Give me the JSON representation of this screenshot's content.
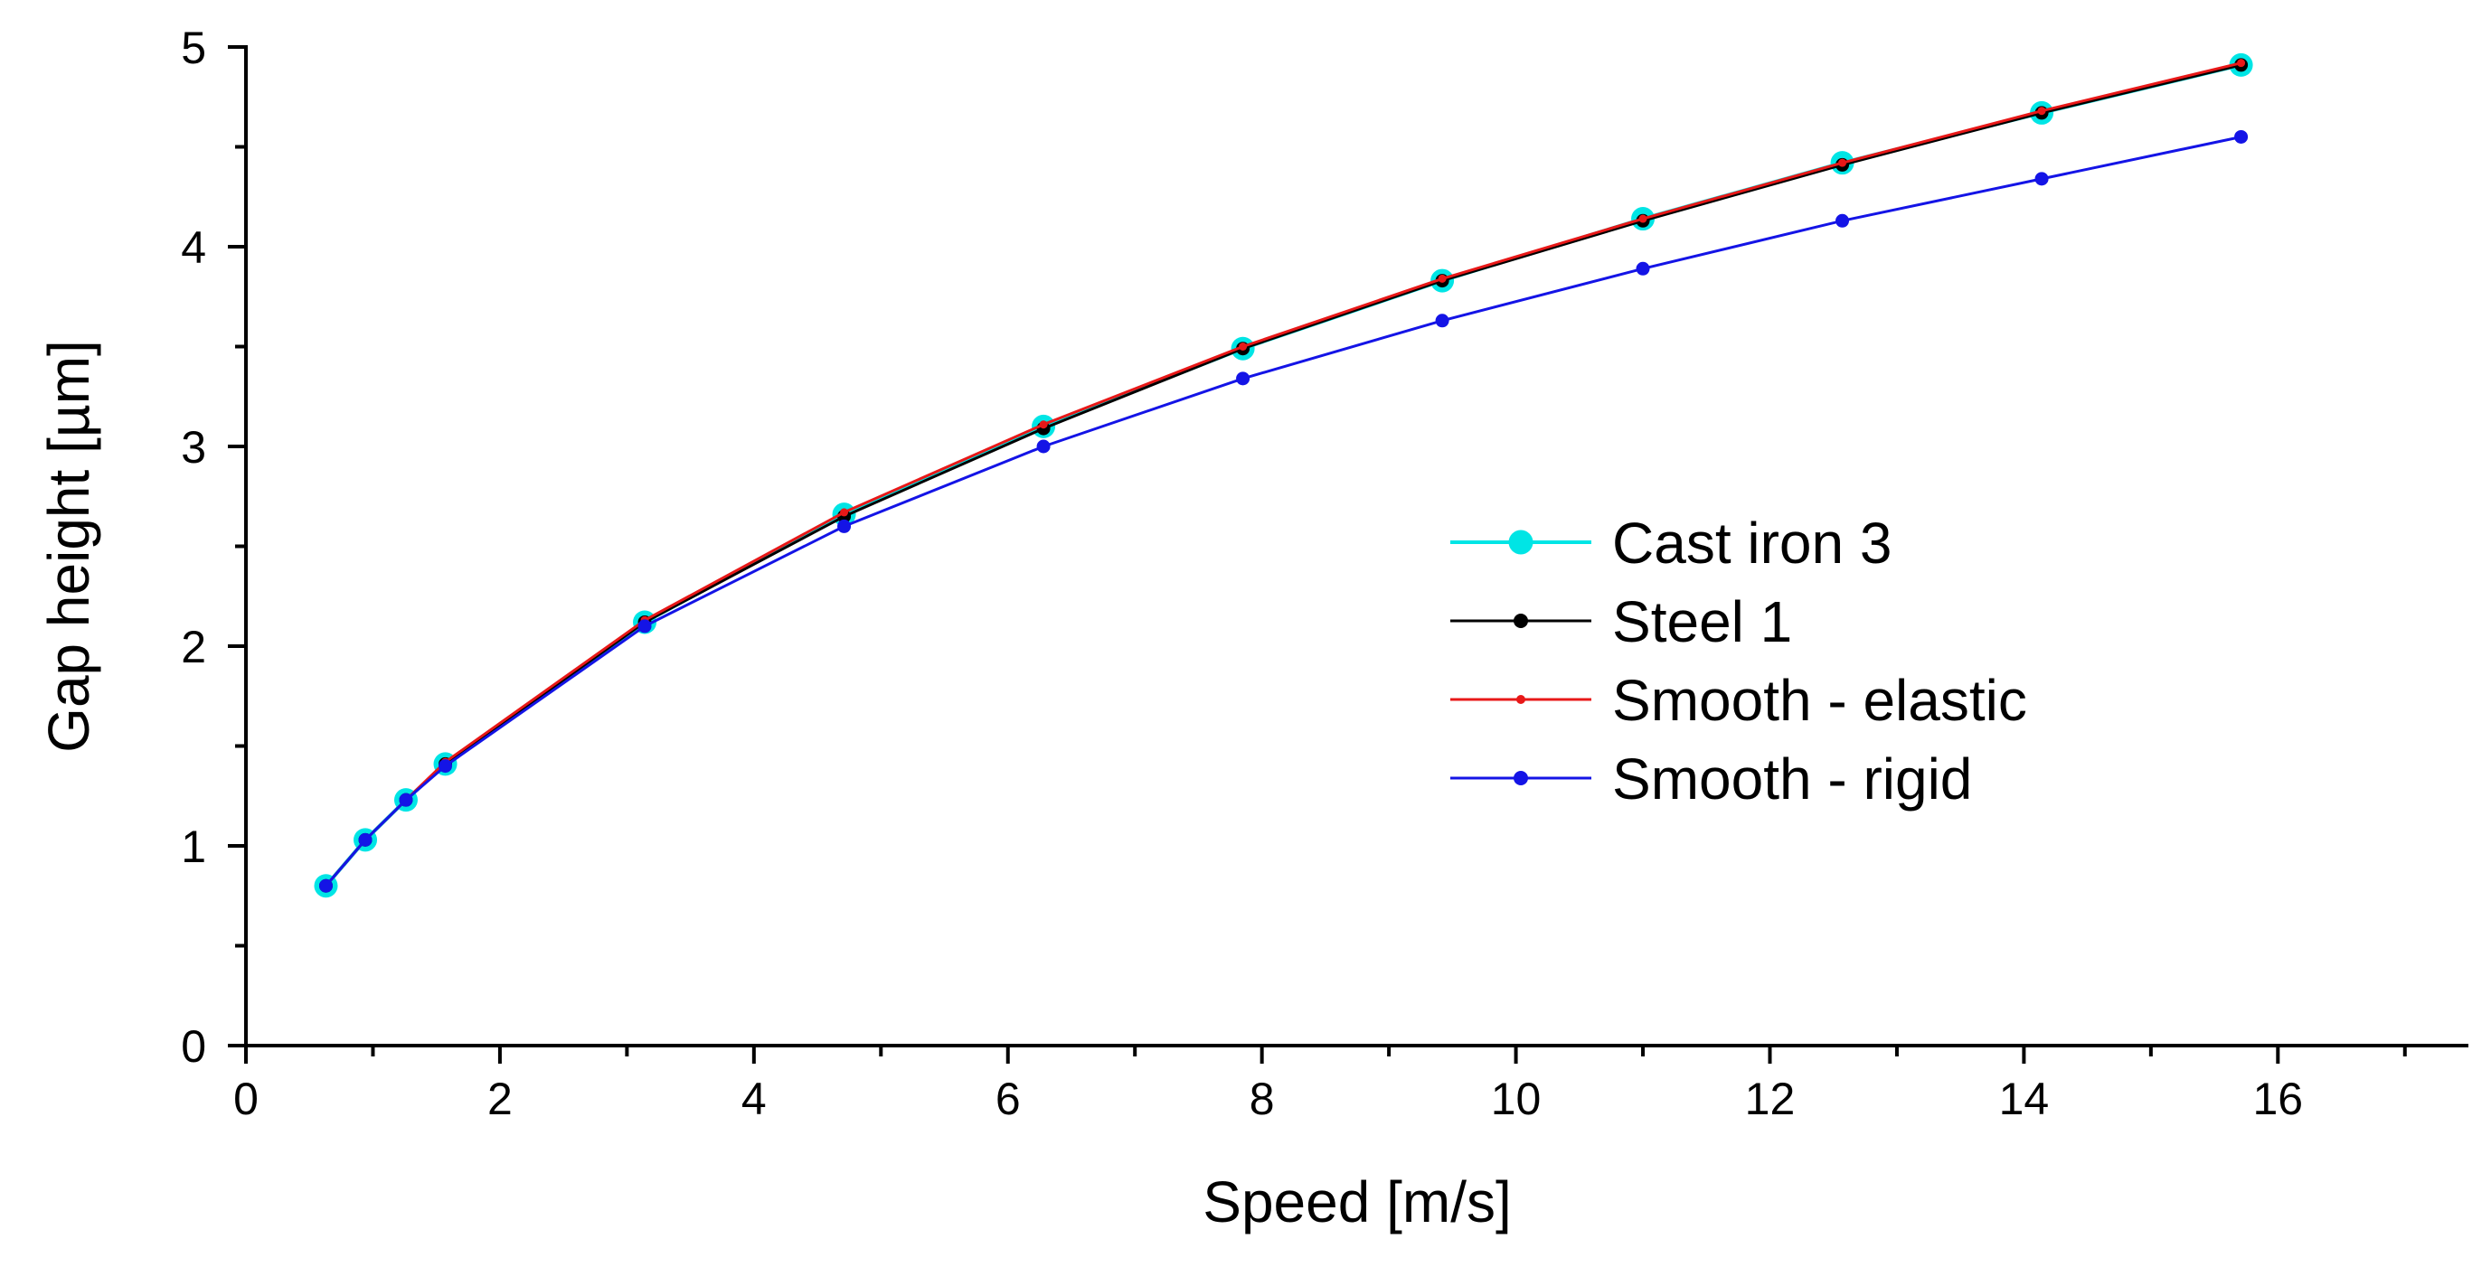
{
  "chart_data": {
    "type": "line",
    "title": "",
    "xlabel": "Speed [m/s]",
    "ylabel": "Gap height [µm]",
    "xlim": [
      0,
      17.5
    ],
    "ylim": [
      0,
      5
    ],
    "xticks": [
      0,
      2,
      4,
      6,
      8,
      10,
      12,
      14,
      16
    ],
    "xtick_labels": [
      "0",
      "2",
      "4",
      "6",
      "8",
      "10",
      "12",
      "14",
      "16"
    ],
    "yticks": [
      0,
      1,
      2,
      3,
      4,
      5
    ],
    "ytick_labels": [
      "0",
      "1",
      "2",
      "3",
      "4",
      "5"
    ],
    "x_minor_step": 1,
    "y_minor_step": 0.5,
    "grid": false,
    "legend_position": "center-right",
    "x": [
      0.63,
      0.94,
      1.26,
      1.57,
      3.14,
      4.71,
      6.28,
      7.85,
      9.42,
      11.0,
      12.57,
      14.14,
      15.71
    ],
    "series": [
      {
        "name": "Cast iron 3",
        "color": "#00e5e5",
        "marker": "circle-large",
        "values": [
          0.8,
          1.03,
          1.23,
          1.41,
          2.12,
          2.66,
          3.1,
          3.49,
          3.83,
          4.14,
          4.42,
          4.67,
          4.91
        ]
      },
      {
        "name": "Steel 1",
        "color": "#000000",
        "marker": "circle-medium",
        "values": [
          0.8,
          1.03,
          1.23,
          1.41,
          2.12,
          2.65,
          3.09,
          3.49,
          3.83,
          4.13,
          4.41,
          4.67,
          4.91
        ]
      },
      {
        "name": "Smooth - elastic",
        "color": "#e81818",
        "marker": "circle-small",
        "values": [
          0.8,
          1.03,
          1.23,
          1.42,
          2.13,
          2.67,
          3.11,
          3.5,
          3.84,
          4.14,
          4.42,
          4.68,
          4.92
        ]
      },
      {
        "name": "Smooth - rigid",
        "color": "#1414e6",
        "marker": "circle-medium",
        "values": [
          0.8,
          1.03,
          1.23,
          1.4,
          2.1,
          2.6,
          3.0,
          3.34,
          3.63,
          3.89,
          4.13,
          4.34,
          4.55
        ]
      }
    ]
  }
}
